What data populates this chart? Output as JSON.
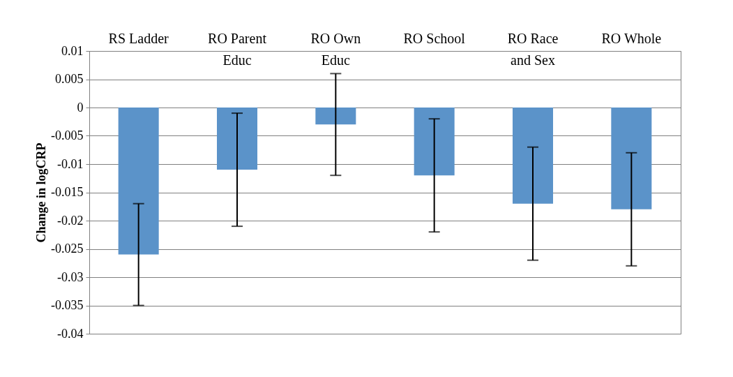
{
  "chart_data": {
    "type": "bar",
    "ylabel": "Change in logCRP",
    "categories": [
      "RS Ladder",
      "RO Parent Educ",
      "RO Own Educ",
      "RO School",
      "RO Race and Sex",
      "RO Whole"
    ],
    "values": [
      -0.026,
      -0.011,
      -0.003,
      -0.012,
      -0.017,
      -0.018
    ],
    "errors": [
      [
        -0.035,
        -0.017
      ],
      [
        -0.021,
        -0.001
      ],
      [
        -0.012,
        0.006
      ],
      [
        -0.022,
        -0.002
      ],
      [
        -0.027,
        -0.007
      ],
      [
        -0.028,
        -0.008
      ]
    ],
    "color": "#5b93c9",
    "ylim": [
      -0.04,
      0.01
    ],
    "yticks": [
      0.01,
      0.005,
      0,
      -0.005,
      -0.01,
      -0.015,
      -0.02,
      -0.025,
      -0.03,
      -0.035,
      -0.04
    ],
    "grid": "y"
  }
}
